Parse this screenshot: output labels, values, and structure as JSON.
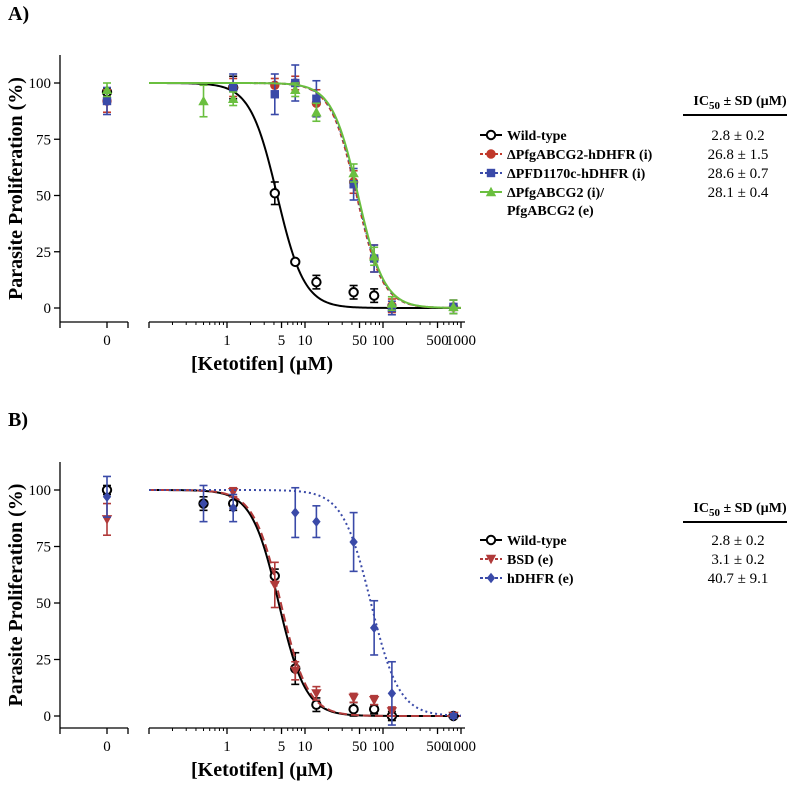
{
  "chart_data": [
    {
      "type": "scatter",
      "panel_label": "A)",
      "ylabel": "Parasite Proliferation (%)",
      "xlabel": "[Ketotifen] (µM)",
      "xscale": "log",
      "xlim": [
        0.1,
        1000
      ],
      "ylim": [
        0,
        110
      ],
      "y_ticks": [
        "0",
        "25",
        "50",
        "75",
        "100"
      ],
      "x_ticks": [
        "0",
        "1",
        "5",
        "10",
        "50",
        "100",
        "500",
        "1000"
      ],
      "table_header": "IC50 ± SD (µM)",
      "series": [
        {
          "name": "Wild-type",
          "ic50": "2.8 ± 0.2",
          "color": "#000000",
          "marker": "circle-open",
          "dash": "solid",
          "x": [
            1.2,
            4.1,
            7.5,
            14,
            42,
            77
          ],
          "y": [
            98,
            51,
            20.5,
            11.5,
            7,
            5.5
          ],
          "err": [
            5,
            5,
            0,
            3,
            3,
            3
          ],
          "ctrl": 96,
          "ctrl_err": 0,
          "fit_ic50": 4.4,
          "hill": 2.5
        },
        {
          "name": "ΔPfgABCG2-hDHFR (i)",
          "ic50": "26.8 ± 1.5",
          "color": "#c0392b",
          "marker": "circle",
          "dash": "4,3",
          "x": [
            1.2,
            4.1,
            7.5,
            14,
            42,
            77,
            130,
            800
          ],
          "y": [
            98,
            99,
            100,
            91,
            56,
            22,
            1,
            0.5
          ],
          "err": [
            4,
            3,
            3,
            6,
            5,
            6,
            3,
            3
          ],
          "ctrl": 92,
          "ctrl_err": 5,
          "fit_ic50": 46,
          "hill": 2.6
        },
        {
          "name": "ΔPFD1170c-hDHFR (i)",
          "ic50": "28.6 ± 0.7",
          "color": "#3a4aa8",
          "marker": "square",
          "dash": "2,3",
          "x": [
            1.2,
            4.1,
            7.5,
            14,
            42,
            77,
            130,
            800
          ],
          "y": [
            98,
            95,
            100,
            93,
            55,
            22,
            0,
            0.5
          ],
          "err": [
            6,
            9,
            8,
            8,
            7,
            6,
            3,
            3
          ],
          "ctrl": 92,
          "ctrl_err": 6,
          "fit_ic50": 47,
          "hill": 2.6
        },
        {
          "name": "ΔPfgABCG2 (i)/",
          "name2": "PfgABCG2 (e)",
          "ic50": "28.1 ± 0.4",
          "color": "#6abf3f",
          "marker": "triangle-up",
          "dash": "solid",
          "x": [
            0.5,
            1.2,
            7.5,
            14,
            42,
            77,
            130,
            800
          ],
          "y": [
            92,
            93,
            97,
            87,
            60,
            23,
            2,
            0.5
          ],
          "err": [
            7,
            3,
            3,
            4,
            4,
            4,
            3,
            3
          ],
          "ctrl": 97,
          "ctrl_err": 3,
          "fit_ic50": 48,
          "hill": 2.6
        }
      ]
    },
    {
      "type": "scatter",
      "panel_label": "B)",
      "ylabel": "Parasite Proliferation (%)",
      "xlabel": "[Ketotifen] (µM)",
      "xscale": "log",
      "xlim": [
        0.1,
        1000
      ],
      "ylim": [
        0,
        110
      ],
      "y_ticks": [
        "0",
        "25",
        "50",
        "75",
        "100"
      ],
      "x_ticks": [
        "0",
        "1",
        "5",
        "10",
        "50",
        "100",
        "500",
        "1000"
      ],
      "table_header": "IC50 ± SD (µM)",
      "series": [
        {
          "name": "Wild-type",
          "ic50": "2.8 ± 0.2",
          "color": "#000000",
          "marker": "circle-open",
          "dash": "solid",
          "x": [
            0.5,
            1.2,
            4.1,
            7.5,
            14,
            42,
            77,
            130,
            800
          ],
          "y": [
            94,
            94,
            62,
            21,
            5,
            3,
            3,
            0,
            0
          ],
          "err": [
            3,
            3,
            3,
            7,
            3,
            3,
            2,
            2,
            1
          ],
          "ctrl": 100,
          "ctrl_err": 2,
          "fit_ic50": 4.6,
          "hill": 2.5
        },
        {
          "name": "BSD (e)",
          "ic50": "3.1 ± 0.2",
          "color": "#b03a3a",
          "marker": "triangle-down",
          "dash": "8,4",
          "x": [
            1.2,
            4.1,
            7.5,
            14,
            42,
            77,
            130,
            800
          ],
          "y": [
            99,
            58,
            20,
            10,
            8,
            7,
            2,
            0
          ],
          "err": [
            2,
            10,
            4,
            3,
            2,
            2,
            2,
            1
          ],
          "ctrl": 87,
          "ctrl_err": 7,
          "fit_ic50": 4.9,
          "hill": 2.5
        },
        {
          "name": "hDHFR (e)",
          "ic50": "40.7 ± 9.1",
          "color": "#3a4aa8",
          "marker": "diamond",
          "dash": "2,3",
          "x": [
            0.5,
            1.2,
            7.5,
            14,
            42,
            77,
            130,
            800
          ],
          "y": [
            94,
            92,
            90,
            86,
            77,
            39,
            10,
            0
          ],
          "err": [
            8,
            6,
            11,
            7,
            13,
            12,
            14,
            1
          ],
          "ctrl": 97,
          "ctrl_err": 9,
          "fit_ic50": 70,
          "hill": 2.4
        }
      ]
    }
  ]
}
